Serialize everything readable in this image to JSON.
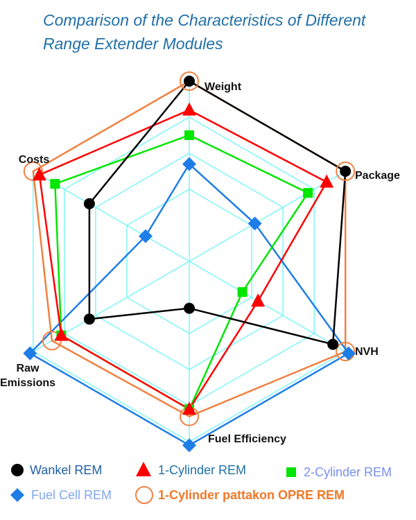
{
  "title_line1": "Comparison of the Characteristics of Different",
  "title_line2": "Range Extender Modules",
  "chart_data": {
    "type": "radar",
    "axes": [
      "Weight",
      "Package",
      "NVH",
      "Fuel Efficiency",
      "Raw Emissions",
      "Costs"
    ],
    "axis_label_lines": {
      "Raw Emissions": [
        "Raw",
        "Emissions"
      ]
    },
    "rmax": 5,
    "grid_levels": [
      2,
      3,
      4,
      5
    ],
    "grid_color": "#7ff5f5",
    "series": [
      {
        "name": "Wankel REM",
        "marker": "circle",
        "color": "#000000",
        "text_color": "#1f5fa5",
        "values": [
          5,
          5,
          4.6,
          1.3,
          3.2,
          3.2
        ]
      },
      {
        "name": "1-Cylinder REM",
        "marker": "triangle",
        "color": "#ff0000",
        "text_color": "#1f6fa8",
        "values": [
          4.2,
          4.4,
          2.2,
          4.1,
          4.1,
          4.8
        ]
      },
      {
        "name": "2-Cylinder REM",
        "marker": "square",
        "color": "#00e600",
        "text_color": "#7a8ff0",
        "values": [
          3.5,
          3.8,
          1.7,
          4.1,
          4.1,
          4.3
        ]
      },
      {
        "name": "Fuel Cell REM",
        "marker": "diamond",
        "color": "#1e7de6",
        "text_color": "#7fa6f0",
        "values": [
          2.7,
          2.1,
          5.1,
          5.1,
          5.1,
          1.4
        ]
      },
      {
        "name": "1-Cylinder pattakon OPRE REM",
        "marker": "ring",
        "color": "#f08040",
        "text_color": "#f07828",
        "values": [
          5,
          5,
          5,
          4.3,
          4.4,
          5
        ]
      }
    ]
  }
}
